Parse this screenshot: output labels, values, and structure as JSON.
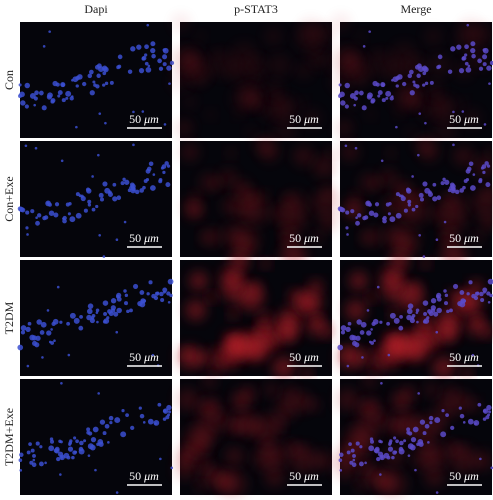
{
  "columns": [
    "Dapi",
    "p-STAT3",
    "Merge"
  ],
  "rows": [
    "Con",
    "Con+Exe",
    "T2DM",
    "T2DM+Exe"
  ],
  "scale_bar": {
    "value": "50",
    "unit": "μm"
  }
}
